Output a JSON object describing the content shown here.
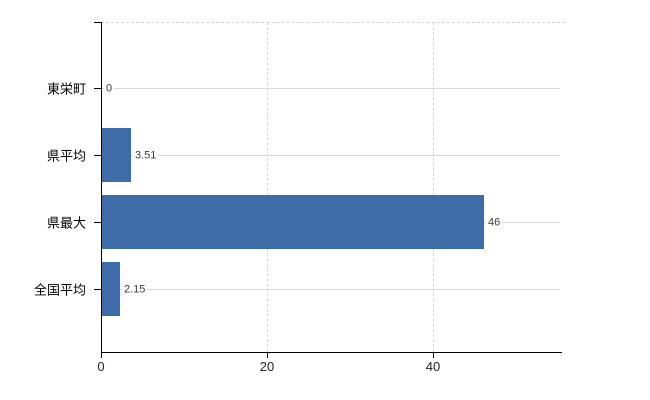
{
  "chart_data": {
    "type": "bar",
    "orientation": "horizontal",
    "title": "",
    "xlabel": "",
    "ylabel": "",
    "categories": [
      "東栄町",
      "県平均",
      "県最大",
      "全国平均"
    ],
    "values": [
      0,
      3.51,
      46,
      2.15
    ],
    "value_labels": [
      "0",
      "3.51",
      "46",
      "2.15"
    ],
    "x_ticks": [
      0,
      20,
      40
    ],
    "x_tick_labels": [
      "0",
      "20",
      "40"
    ],
    "xlim": [
      0,
      55.4
    ],
    "grid": true,
    "legend": "none",
    "bar_color": "#3d6ca9"
  },
  "colors": {
    "bar": "#3d6ca9",
    "axis": "#000000",
    "category_gridline": "#d6dad3",
    "dashed_gridline": "#d4d4d4",
    "value_label_text": "#3c3c3c",
    "tick_label_text": "#222222",
    "background": "#ffffff"
  }
}
